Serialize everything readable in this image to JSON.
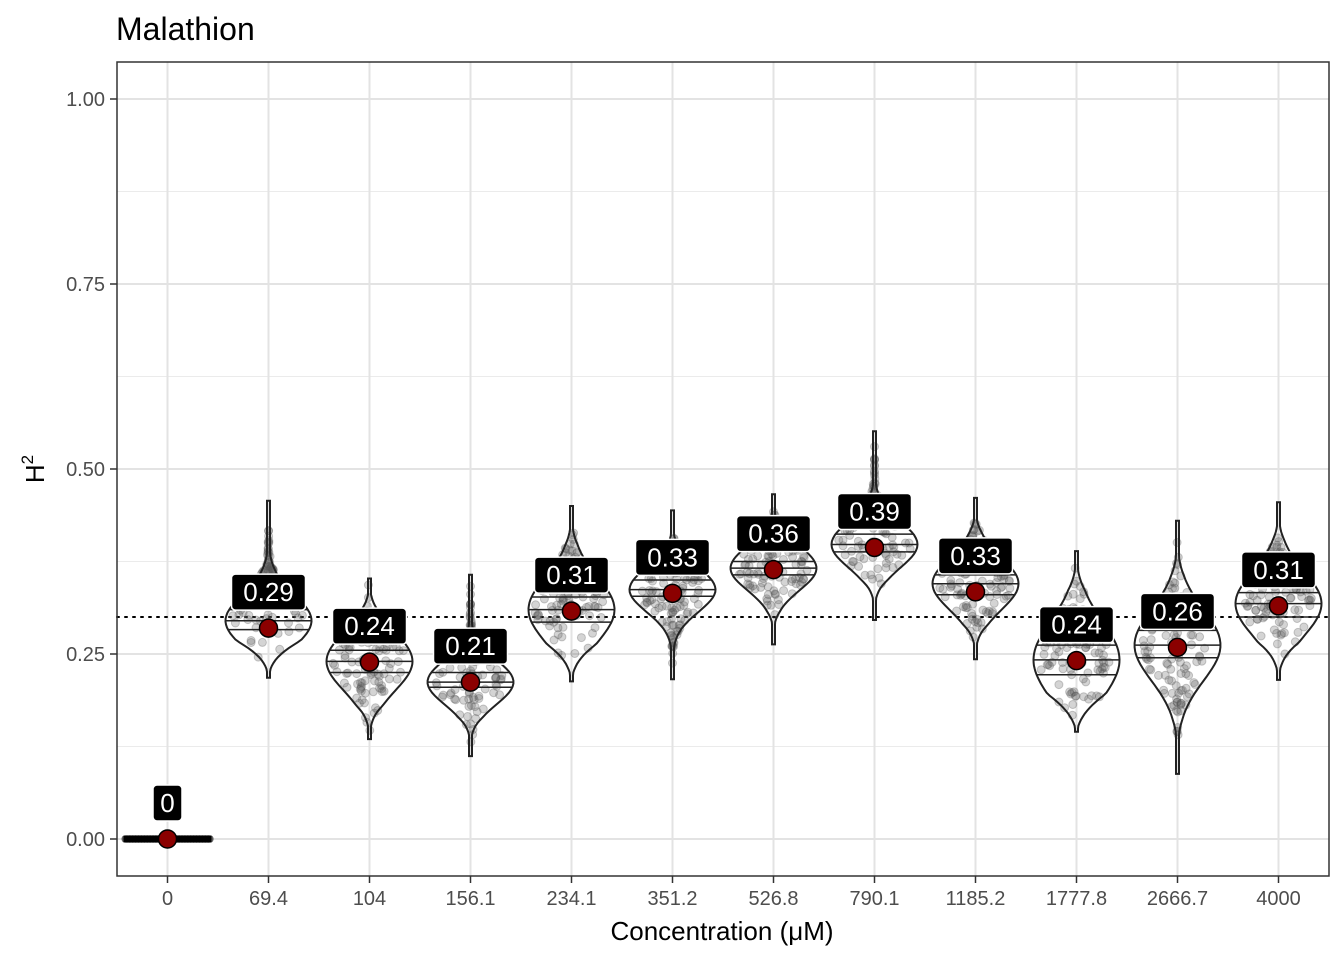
{
  "chart_data": {
    "type": "violin",
    "title": "Malathion",
    "xlabel": "Concentration (μM)",
    "ylabel": "H",
    "ylabel_superscript": "2",
    "ylim": [
      -0.05,
      1.05
    ],
    "yticks": [
      "0.00",
      "0.25",
      "0.50",
      "0.75",
      "1.00"
    ],
    "reference_line_y": 0.3,
    "grid": true,
    "colors": {
      "point": "#8b0000",
      "violin_line": "#222222",
      "label_bg": "#000000",
      "label_text": "#ffffff"
    },
    "categories": [
      "0",
      "69.4",
      "104",
      "156.1",
      "234.1",
      "351.2",
      "526.8",
      "790.1",
      "1185.2",
      "1777.8",
      "2666.7",
      "4000"
    ],
    "groups": [
      {
        "label": "0",
        "mean": 0.0,
        "min": 0.0,
        "max": 0.0,
        "q1": 0.0,
        "q2": 0.0,
        "q3": 0.0
      },
      {
        "label": "0.29",
        "mean": 0.285,
        "min": 0.218,
        "max": 0.457,
        "q1": 0.283,
        "q2": 0.295,
        "q3": 0.31
      },
      {
        "label": "0.24",
        "mean": 0.239,
        "min": 0.135,
        "max": 0.352,
        "q1": 0.225,
        "q2": 0.24,
        "q3": 0.255
      },
      {
        "label": "0.21",
        "mean": 0.212,
        "min": 0.112,
        "max": 0.357,
        "q1": 0.205,
        "q2": 0.212,
        "q3": 0.225
      },
      {
        "label": "0.31",
        "mean": 0.308,
        "min": 0.213,
        "max": 0.45,
        "q1": 0.293,
        "q2": 0.31,
        "q3": 0.327
      },
      {
        "label": "0.33",
        "mean": 0.332,
        "min": 0.216,
        "max": 0.444,
        "q1": 0.328,
        "q2": 0.337,
        "q3": 0.35
      },
      {
        "label": "0.36",
        "mean": 0.364,
        "min": 0.263,
        "max": 0.466,
        "q1": 0.357,
        "q2": 0.366,
        "q3": 0.375
      },
      {
        "label": "0.39",
        "mean": 0.394,
        "min": 0.296,
        "max": 0.551,
        "q1": 0.388,
        "q2": 0.398,
        "q3": 0.412
      },
      {
        "label": "0.33",
        "mean": 0.334,
        "min": 0.243,
        "max": 0.461,
        "q1": 0.33,
        "q2": 0.345,
        "q3": 0.357
      },
      {
        "label": "0.24",
        "mean": 0.241,
        "min": 0.145,
        "max": 0.389,
        "q1": 0.222,
        "q2": 0.242,
        "q3": 0.262
      },
      {
        "label": "0.26",
        "mean": 0.259,
        "min": 0.088,
        "max": 0.43,
        "q1": 0.245,
        "q2": 0.262,
        "q3": 0.282
      },
      {
        "label": "0.31",
        "mean": 0.315,
        "min": 0.215,
        "max": 0.455,
        "q1": 0.3,
        "q2": 0.318,
        "q3": 0.333
      }
    ]
  }
}
